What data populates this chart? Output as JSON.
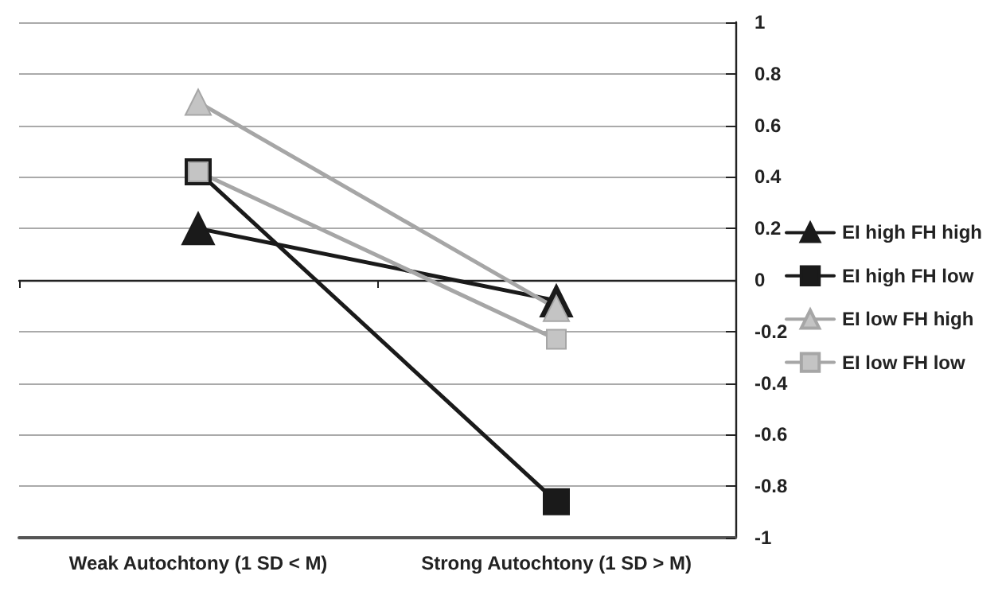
{
  "chart_data": {
    "type": "line",
    "categories": [
      "Weak Autochtony (1 SD < M)",
      "Strong Autochtony (1 SD > M)"
    ],
    "series": [
      {
        "name": "EI high FH high",
        "color": "#1a1a1a",
        "marker": "triangle",
        "values": [
          0.2,
          -0.08
        ]
      },
      {
        "name": "EI high FH low",
        "color": "#1a1a1a",
        "marker": "square",
        "values": [
          0.42,
          -0.86
        ]
      },
      {
        "name": "EI low FH high",
        "color": "#a6a6a6",
        "marker": "triangle",
        "values": [
          0.69,
          -0.11
        ]
      },
      {
        "name": "EI low FH low",
        "color": "#a6a6a6",
        "marker": "square",
        "values": [
          0.42,
          -0.23
        ]
      }
    ],
    "ylim": [
      -1,
      1
    ],
    "yticks": [
      -1,
      -0.8,
      -0.6,
      -0.4,
      -0.2,
      0,
      0.2,
      0.4,
      0.6,
      0.8,
      1
    ],
    "grid": "y",
    "legend": "right"
  }
}
